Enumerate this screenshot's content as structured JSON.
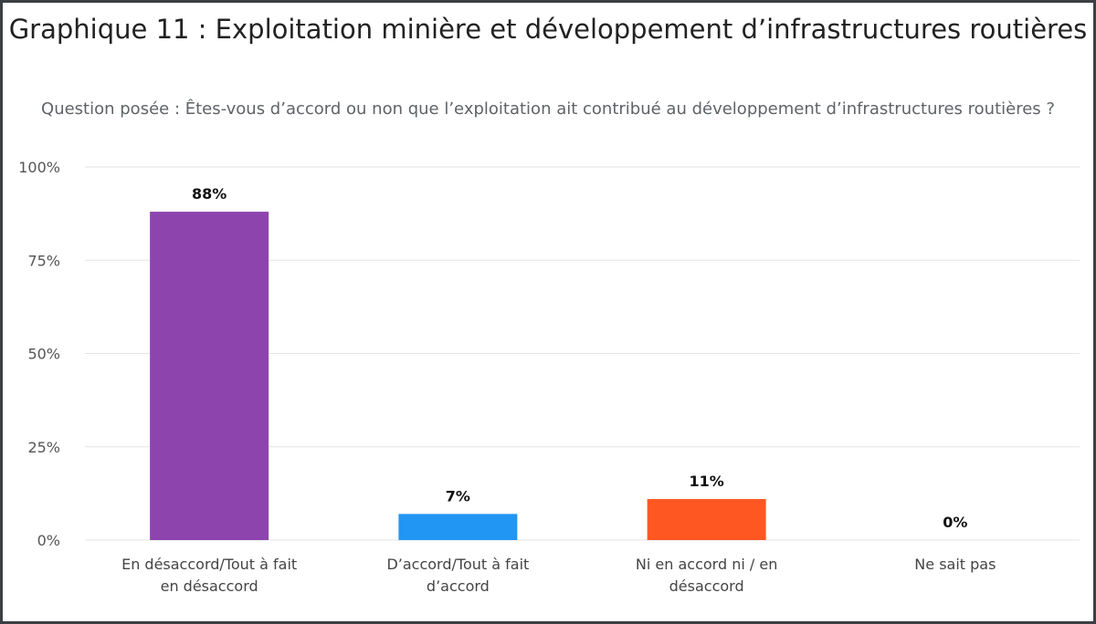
{
  "chart_data": {
    "type": "bar",
    "title": "Graphique 11 : Exploitation minière et développement d’infrastructures routières",
    "subtitle": "Question posée : Êtes-vous d’accord ou non que l’exploitation ait contribué au développement d’infrastructures routières ?",
    "categories": [
      "En désaccord/Tout à fait en désaccord",
      "D’accord/Tout à fait d’accord",
      "Ni en accord ni / en désaccord",
      "Ne sait pas"
    ],
    "values": [
      88,
      7,
      11,
      0
    ],
    "data_labels": [
      "88%",
      "7%",
      "11%",
      "0%"
    ],
    "colors": [
      "#8e44ad",
      "#2196f3",
      "#ff5722",
      "#9e9e9e"
    ],
    "y_ticks": [
      0,
      25,
      50,
      75,
      100
    ],
    "y_tick_labels": [
      "0%",
      "25%",
      "50%",
      "75%",
      "100%"
    ],
    "ylim": [
      0,
      100
    ],
    "xlabel": "",
    "ylabel": "",
    "grid": true,
    "legend": "none"
  }
}
